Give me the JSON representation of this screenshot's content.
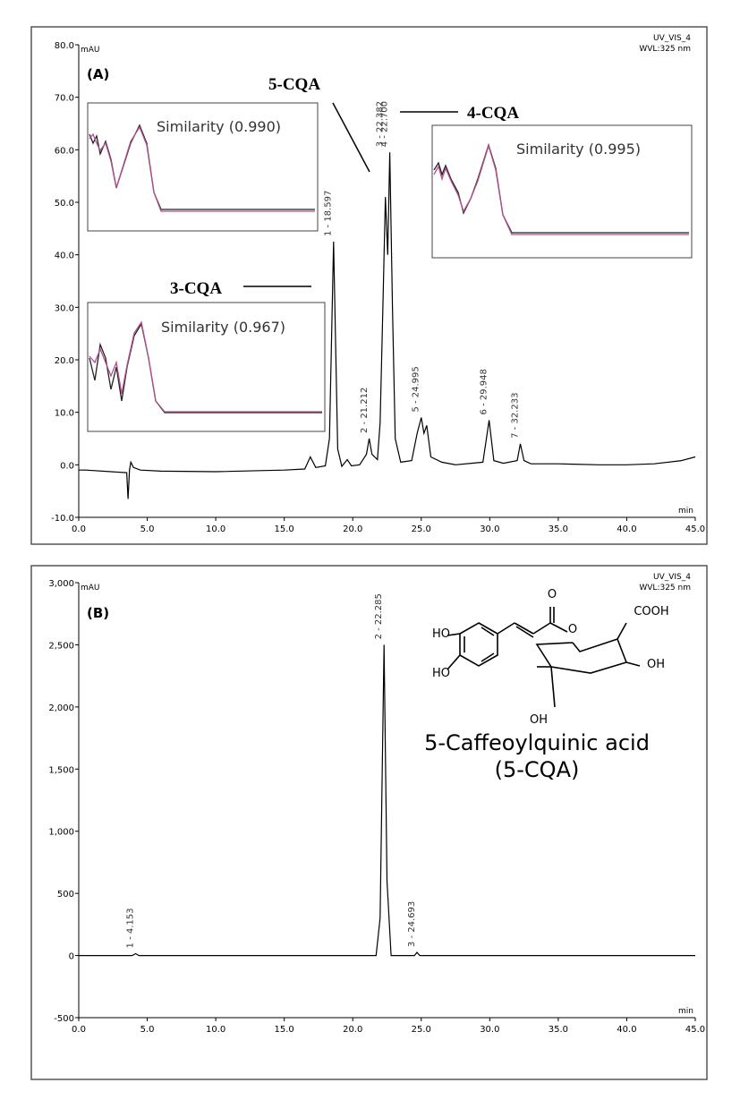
{
  "chart_data": [
    {
      "type": "line",
      "panel_label": "(A)",
      "detector": "UV_VIS_4",
      "wavelength": "WVL:325 nm",
      "ylabel": "mAU",
      "xlabel": "min",
      "color": "#000000",
      "x": [
        0,
        0.5,
        3.5,
        3.6,
        3.7,
        3.8,
        4.0,
        4.5,
        6,
        10,
        15,
        16.5,
        16.9,
        17.3,
        18,
        18.3,
        18.6,
        18.9,
        19.2,
        19.6,
        19.9,
        20.5,
        21.0,
        21.2,
        21.4,
        21.8,
        22.0,
        22.2,
        22.38,
        22.55,
        22.7,
        22.9,
        23.1,
        23.5,
        24.3,
        24.7,
        25.0,
        25.2,
        25.4,
        25.7,
        26.5,
        27.5,
        29.5,
        29.95,
        30.3,
        31,
        32.0,
        32.23,
        32.5,
        33,
        35,
        38,
        40,
        42,
        44,
        45
      ],
      "values": [
        -1,
        -1,
        -1.5,
        -6.5,
        -1,
        0.5,
        -0.5,
        -1,
        -1.2,
        -1.3,
        -1.0,
        -0.8,
        1.5,
        -0.5,
        -0.2,
        5,
        42.5,
        3,
        -0.3,
        1,
        -0.2,
        0,
        2,
        5,
        2,
        1,
        8,
        30,
        51,
        40,
        59.5,
        30,
        5,
        0.5,
        0.8,
        6,
        9,
        6,
        7.5,
        1.5,
        0.5,
        0,
        0.5,
        8.5,
        0.8,
        0.3,
        0.8,
        4,
        0.8,
        0.2,
        0.2,
        0,
        0,
        0.2,
        0.8,
        1.5
      ],
      "xlim": [
        0,
        45
      ],
      "ylim": [
        -10,
        80
      ],
      "xticks": [
        {
          "value": 0,
          "label": "0.0"
        },
        {
          "value": 5,
          "label": "5.0"
        },
        {
          "value": 10,
          "label": "10.0"
        },
        {
          "value": 15,
          "label": "15.0"
        },
        {
          "value": 20,
          "label": "20.0"
        },
        {
          "value": 25,
          "label": "25.0"
        },
        {
          "value": 30,
          "label": "30.0"
        },
        {
          "value": 35,
          "label": "35.0"
        },
        {
          "value": 40,
          "label": "40.0"
        },
        {
          "value": 45,
          "label": "45.0"
        }
      ],
      "yticks": [
        {
          "value": -10,
          "label": "-10.0"
        },
        {
          "value": 0,
          "label": "0.0"
        },
        {
          "value": 10,
          "label": "10.0"
        },
        {
          "value": 20,
          "label": "20.0"
        },
        {
          "value": 30,
          "label": "30.0"
        },
        {
          "value": 40,
          "label": "40.0"
        },
        {
          "value": 50,
          "label": "50.0"
        },
        {
          "value": 60,
          "label": "60.0"
        },
        {
          "value": 70,
          "label": "70.0"
        },
        {
          "value": 80,
          "label": "80.0"
        }
      ],
      "peaks": [
        {
          "label": "1 - 18.597",
          "x": 18.597
        },
        {
          "label": "2 - 21.212",
          "x": 21.212
        },
        {
          "label": "3 - 22.382",
          "x": 22.382
        },
        {
          "label": "4 - 22.700",
          "x": 22.7
        },
        {
          "label": "5 - 24.995",
          "x": 24.995
        },
        {
          "label": "6 - 29.948",
          "x": 29.948
        },
        {
          "label": "7 - 32.233",
          "x": 32.233
        }
      ],
      "annotations": [
        "5-CQA",
        "4-CQA",
        "3-CQA"
      ],
      "similarity_labels": [
        "Similarity (0.990)",
        "Similarity (0.995)",
        "Similarity (0.967)"
      ]
    },
    {
      "type": "line",
      "panel_label": "(B)",
      "detector": "UV_VIS_4",
      "wavelength": "WVL:325 nm",
      "ylabel": "mAU",
      "xlabel": "min",
      "color": "#000000",
      "x": [
        0,
        3.9,
        4.15,
        4.4,
        9,
        21.7,
        22.0,
        22.285,
        22.5,
        22.8,
        24.5,
        24.69,
        24.9,
        45
      ],
      "values": [
        0,
        0,
        15,
        0,
        0,
        0,
        300,
        2500,
        600,
        0,
        0,
        25,
        0,
        0
      ],
      "xlim": [
        0,
        45
      ],
      "ylim": [
        -500,
        3000
      ],
      "xticks": [
        {
          "value": 0,
          "label": "0.0"
        },
        {
          "value": 5,
          "label": "5.0"
        },
        {
          "value": 10,
          "label": "10.0"
        },
        {
          "value": 15,
          "label": "15.0"
        },
        {
          "value": 20,
          "label": "20.0"
        },
        {
          "value": 25,
          "label": "25.0"
        },
        {
          "value": 30,
          "label": "30.0"
        },
        {
          "value": 35,
          "label": "35.0"
        },
        {
          "value": 40,
          "label": "40.0"
        },
        {
          "value": 45,
          "label": "45.0"
        }
      ],
      "yticks": [
        -500,
        0,
        500,
        {
          "value": 1000,
          "label": "1,000"
        },
        {
          "value": 1500,
          "label": "1,500"
        },
        {
          "value": 2000,
          "label": "2,000"
        },
        {
          "value": 2500,
          "label": "2,500"
        },
        {
          "value": 3000,
          "label": "3,000"
        }
      ],
      "peaks": [
        {
          "label": "1 - 4.153",
          "x": 4.153
        },
        {
          "label": "2 - 22.285",
          "x": 22.285
        },
        {
          "label": "3 - 24.693",
          "x": 24.693
        }
      ],
      "structure_labels": [
        "HO",
        "HO",
        "O",
        "O",
        "COOH",
        "OH",
        "OH"
      ],
      "compound_name": "5-Caffeoylquinic acid",
      "compound_abbr": "(5-CQA)"
    }
  ]
}
